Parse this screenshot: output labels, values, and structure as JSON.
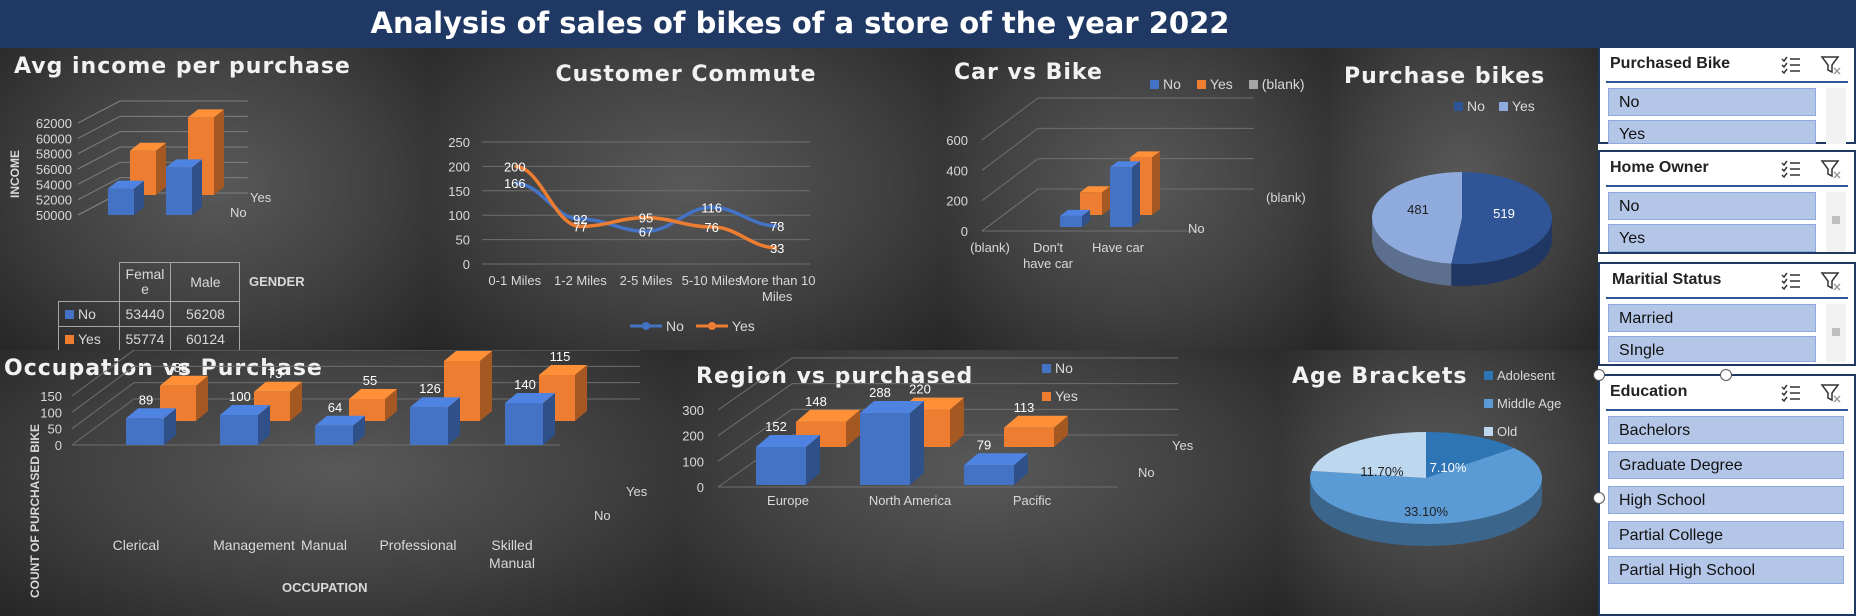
{
  "title": "Analysis  of sales of bikes of a store of the year 2022",
  "colors": {
    "no": "#4472c4",
    "yes": "#ed7d31",
    "blank": "#a5a5a5"
  },
  "avg_income": {
    "title": "Avg income per purchase",
    "ylabel": "INCOME",
    "xlabel": "GENDER",
    "yticks": [
      "62000",
      "60000",
      "58000",
      "56000",
      "54000",
      "52000",
      "50000"
    ],
    "depth_labels": [
      "Yes",
      "No"
    ],
    "table_headers": [
      "Femal e",
      "Male"
    ],
    "table_rows": [
      {
        "name": "No",
        "values": [
          "53440",
          "56208"
        ]
      },
      {
        "name": "Yes",
        "values": [
          "55774",
          "60124"
        ]
      }
    ]
  },
  "commute": {
    "title": "Customer Commute",
    "yticks": [
      "250",
      "200",
      "150",
      "100",
      "50",
      "0"
    ],
    "categories": [
      "0-1 Miles",
      "1-2 Miles",
      "2-5 Miles",
      "5-10 Miles",
      "More than 10 Miles"
    ],
    "legend": [
      "No",
      "Yes"
    ],
    "point_labels_no": [
      "166",
      "92",
      "67",
      "116",
      "78"
    ],
    "point_labels_yes": [
      "200",
      "77",
      "95",
      "76",
      "33"
    ]
  },
  "car_bike": {
    "title": "Car vs Bike",
    "legend": [
      "No",
      "Yes",
      "(blank)"
    ],
    "yticks": [
      "600",
      "400",
      "200",
      "0"
    ],
    "categories": [
      "(blank)",
      "Don't have car",
      "Have car"
    ],
    "depth_labels": [
      "(blank)",
      "No"
    ]
  },
  "purchase_bikes": {
    "title": "Purchase bikes",
    "legend": [
      "No",
      "Yes"
    ],
    "labels": [
      "519",
      "481"
    ]
  },
  "occupation": {
    "title": "Occupation vs Purchase",
    "ylabel": "COUNT OF PURCHASED BIKE",
    "xlabel": "OCCUPATION",
    "yticks": [
      "150",
      "100",
      "50",
      "0"
    ],
    "categories": [
      "Clerical",
      "Management",
      "Manual",
      "Professional",
      "Skilled Manual"
    ],
    "labels_no": [
      "89",
      "100",
      "64",
      "126",
      "140"
    ],
    "labels_yes": [
      "88",
      "73",
      "55",
      "150",
      "115"
    ],
    "depth_labels": [
      "Yes",
      "No"
    ]
  },
  "region": {
    "title": "Region vs purchased",
    "legend": [
      "No",
      "Yes"
    ],
    "yticks": [
      "300",
      "200",
      "100",
      "0"
    ],
    "categories": [
      "Europe",
      "North America",
      "Pacific"
    ],
    "labels_no": [
      "152",
      "288",
      "79"
    ],
    "labels_yes": [
      "148",
      "220",
      "113"
    ],
    "depth_labels": [
      "Yes",
      "No"
    ]
  },
  "age": {
    "title": "Age Brackets",
    "legend": [
      "Adolesent",
      "Middle Age",
      "Old"
    ],
    "labels": [
      "7.10%",
      "33.10%",
      "11.70%"
    ]
  },
  "slicers": {
    "purchased_bike": {
      "title": "Purchased Bike",
      "items": [
        "No",
        "Yes"
      ]
    },
    "home_owner": {
      "title": "Home Owner",
      "items": [
        "No",
        "Yes"
      ]
    },
    "marital": {
      "title": "Maritial Status",
      "items": [
        "Married",
        "SIngle"
      ]
    },
    "education": {
      "title": "Education",
      "items": [
        "Bachelors",
        "Graduate Degree",
        "High School",
        "Partial College",
        "Partial High School"
      ]
    }
  },
  "chart_data": [
    {
      "type": "bar",
      "title": "Avg income per purchase",
      "categories": [
        "Female",
        "Male"
      ],
      "series": [
        {
          "name": "No",
          "values": [
            53440,
            56208
          ]
        },
        {
          "name": "Yes",
          "values": [
            55774,
            60124
          ]
        }
      ],
      "xlabel": "GENDER",
      "ylabel": "INCOME",
      "ylim": [
        50000,
        62000
      ]
    },
    {
      "type": "line",
      "title": "Customer Commute",
      "categories": [
        "0-1 Miles",
        "1-2 Miles",
        "2-5 Miles",
        "5-10 Miles",
        "More than 10 Miles"
      ],
      "series": [
        {
          "name": "No",
          "values": [
            166,
            92,
            67,
            116,
            78
          ]
        },
        {
          "name": "Yes",
          "values": [
            200,
            77,
            95,
            76,
            33
          ]
        }
      ],
      "ylim": [
        0,
        250
      ]
    },
    {
      "type": "bar",
      "title": "Car vs Bike",
      "categories": [
        "(blank)",
        "Don't have car",
        "Have car"
      ],
      "series": [
        {
          "name": "No",
          "values": [
            0,
            100,
            420
          ]
        },
        {
          "name": "Yes",
          "values": [
            0,
            150,
            380
          ]
        }
      ],
      "ylim": [
        0,
        600
      ]
    },
    {
      "type": "pie",
      "title": "Purchase bikes",
      "categories": [
        "No",
        "Yes"
      ],
      "values": [
        519,
        481
      ]
    },
    {
      "type": "bar",
      "title": "Occupation vs Purchase",
      "categories": [
        "Clerical",
        "Management",
        "Manual",
        "Professional",
        "Skilled Manual"
      ],
      "series": [
        {
          "name": "No",
          "values": [
            89,
            100,
            64,
            126,
            140
          ]
        },
        {
          "name": "Yes",
          "values": [
            88,
            73,
            55,
            150,
            115
          ]
        }
      ],
      "xlabel": "OCCUPATION",
      "ylabel": "COUNT OF PURCHASED BIKE",
      "ylim": [
        0,
        150
      ]
    },
    {
      "type": "bar",
      "title": "Region vs purchased",
      "categories": [
        "Europe",
        "North America",
        "Pacific"
      ],
      "series": [
        {
          "name": "No",
          "values": [
            152,
            288,
            79
          ]
        },
        {
          "name": "Yes",
          "values": [
            148,
            220,
            113
          ]
        }
      ],
      "ylim": [
        0,
        300
      ]
    },
    {
      "type": "pie",
      "title": "Age Brackets",
      "categories": [
        "Adolesent",
        "Middle Age",
        "Old"
      ],
      "values": [
        7.1,
        33.1,
        11.7
      ]
    }
  ]
}
